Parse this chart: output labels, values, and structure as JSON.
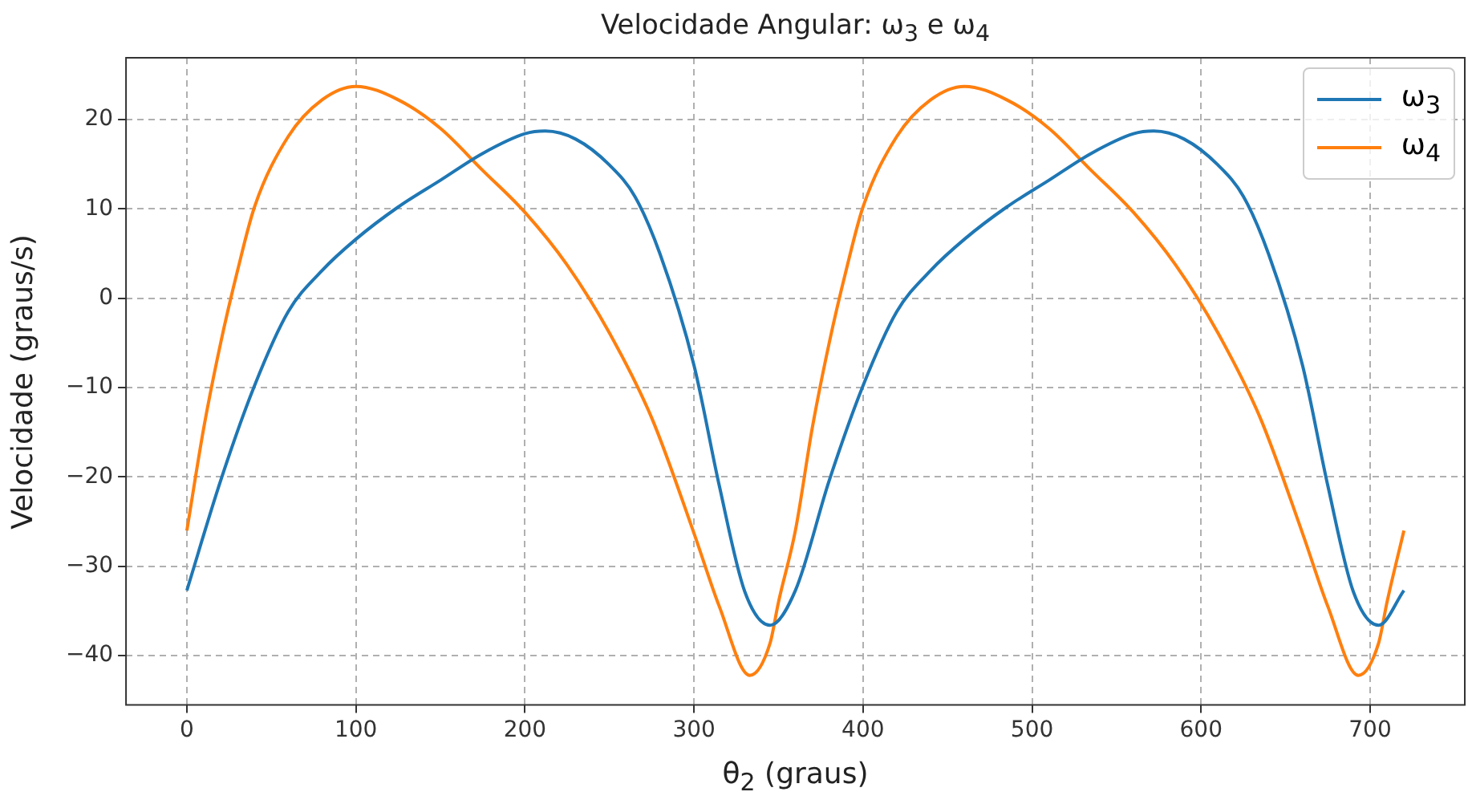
{
  "chart_data": {
    "type": "line",
    "title": "Velocidade Angular: ω$_{3}$ e ω$_{4}$",
    "xlabel": "θ$_{2}$ (graus)",
    "ylabel": "Velocidade (graus/s)",
    "xlim": [
      -36,
      756
    ],
    "xticks": [
      0,
      100,
      200,
      300,
      400,
      500,
      600,
      700
    ],
    "ylim": [
      -45.5,
      26.9
    ],
    "yticks": [
      -40,
      -30,
      -20,
      -10,
      0,
      10,
      20
    ],
    "grid": true,
    "legend": "top right",
    "marker": "none",
    "line_style": "solid",
    "series": [
      {
        "name": "ω$_{3}$",
        "color": "#1f77b4",
        "x": [
          0,
          20,
          40,
          60,
          80,
          100,
          125,
          150,
          175,
          200,
          212,
          230,
          250,
          265,
          280,
          300,
          315,
          330,
          345,
          360,
          380,
          400,
          420,
          440,
          460,
          485,
          510,
          535,
          560,
          572,
          590,
          610,
          625,
          640,
          660,
          675,
          690,
          705,
          720
        ],
        "values": [
          -32.7,
          -20.4,
          -9.8,
          -1.5,
          3.1,
          6.6,
          10.2,
          13.2,
          16.2,
          18.4,
          18.7,
          17.8,
          14.9,
          11.4,
          4.9,
          -7.5,
          -21,
          -32.8,
          -36.6,
          -32.7,
          -20.4,
          -9.8,
          -1.5,
          3.1,
          6.6,
          10.2,
          13.2,
          16.2,
          18.4,
          18.7,
          17.8,
          14.9,
          11.4,
          4.9,
          -7.5,
          -21,
          -32.8,
          -36.6,
          -32.7
        ]
      },
      {
        "name": "ω$_{4}$",
        "color": "#ff7f0e",
        "x": [
          0,
          10,
          20,
          30,
          40,
          60,
          80,
          100,
          125,
          150,
          175,
          200,
          225,
          250,
          275,
          300,
          315,
          333,
          345,
          350,
          360,
          370,
          380,
          390,
          400,
          420,
          440,
          460,
          485,
          510,
          535,
          560,
          585,
          610,
          635,
          660,
          675,
          693,
          705,
          710,
          720
        ],
        "values": [
          -26,
          -14.5,
          -5,
          3.1,
          10.2,
          18.1,
          22.2,
          23.7,
          22.2,
          19,
          14.3,
          9.6,
          3.7,
          -3.9,
          -13.4,
          -26.3,
          -34.5,
          -42.2,
          -38.6,
          -34,
          -26,
          -14.5,
          -5,
          3.1,
          10.2,
          18.1,
          22.2,
          23.7,
          22.2,
          19,
          14.3,
          9.6,
          3.7,
          -3.9,
          -13.4,
          -26.3,
          -34.5,
          -42.2,
          -38.6,
          -34,
          -26
        ]
      }
    ]
  }
}
